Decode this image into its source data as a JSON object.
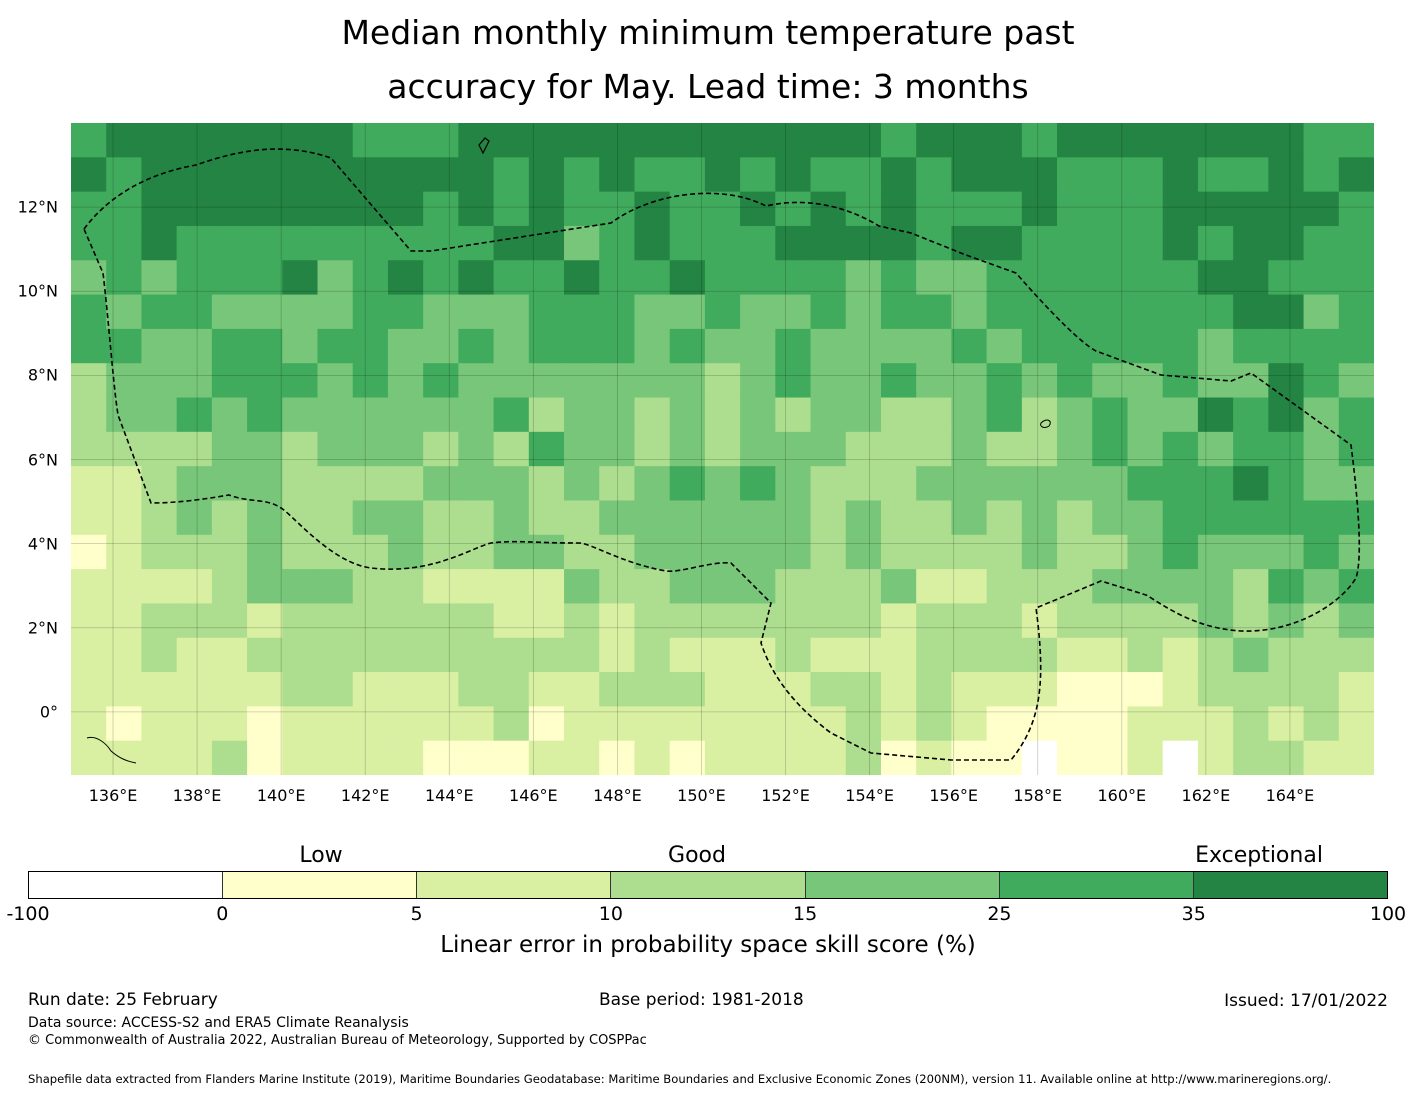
{
  "title": {
    "line1": "Median monthly minimum temperature past",
    "line2": "accuracy for May. Lead time: 3 months"
  },
  "map": {
    "x_ticks": [
      "136°E",
      "138°E",
      "140°E",
      "142°E",
      "144°E",
      "146°E",
      "148°E",
      "150°E",
      "152°E",
      "154°E",
      "156°E",
      "158°E",
      "160°E",
      "162°E",
      "164°E"
    ],
    "y_ticks": [
      "12°N",
      "10°N",
      "8°N",
      "6°N",
      "4°N",
      "2°N",
      "0°"
    ],
    "lon_range": [
      135.0,
      166.0
    ],
    "lat_range": [
      -1.5,
      14.0
    ],
    "grid_resolution_deg": 0.833,
    "grid_lines": true,
    "boundary_style": "dashed",
    "category_colors": [
      "#ffffff",
      "#ffffcc",
      "#d9f0a3",
      "#addd8e",
      "#78c679",
      "#41ab5d",
      "#238443"
    ]
  },
  "legend": {
    "categories": [
      "Low",
      "Good",
      "Exceptional"
    ],
    "ticks": [
      "-100",
      "0",
      "5",
      "10",
      "15",
      "25",
      "35",
      "100"
    ],
    "colors": [
      "#ffffff",
      "#ffffcc",
      "#d9f0a3",
      "#addd8e",
      "#78c679",
      "#41ab5d",
      "#238443"
    ],
    "label": "Linear error in probability space skill score (%)"
  },
  "footer": {
    "run_date": "Run date: 25 February",
    "base_period": "Base period: 1981-2018",
    "issued": "Issued: 17/01/2022",
    "data_source": "Data source: ACCESS-S2 and ERA5 Climate Reanalysis",
    "copyright": "© Commonwealth of Australia 2022, Australian Bureau of Meteorology, Supported by COSPPac",
    "shapefile": "Shapefile data extracted from Flanders Marine Institute (2019), Maritime Boundaries Geodatabase: Maritime Boundaries and Exclusive Economic Zones (200NM), version 11. Available online at http://www.marineregions.org/."
  }
}
